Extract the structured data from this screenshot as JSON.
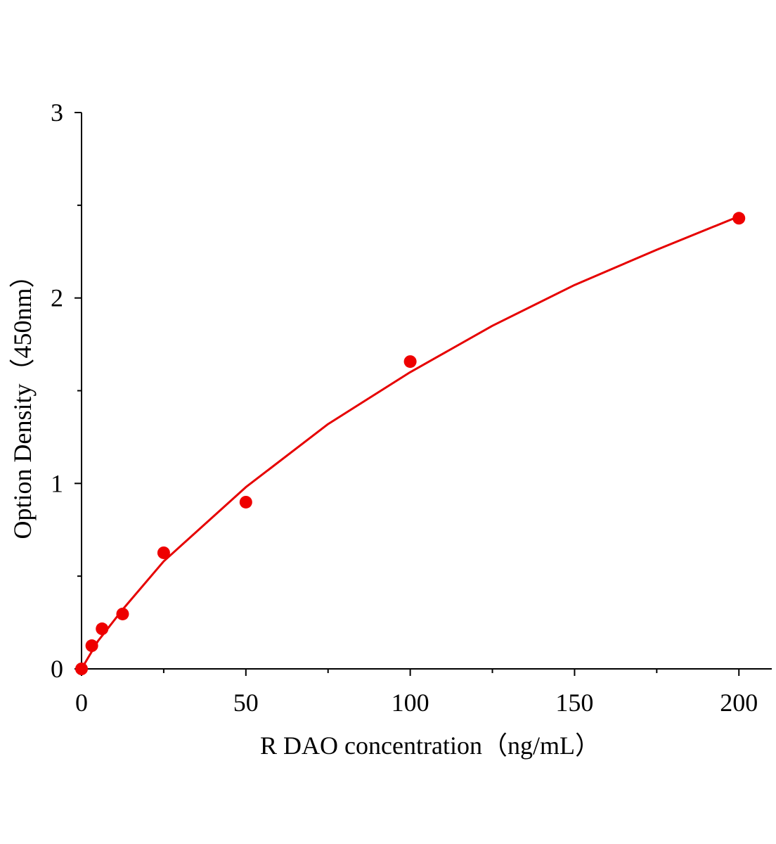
{
  "chart_data": {
    "type": "scatter",
    "xlabel": "R DAO  concentration（ng/mL）",
    "ylabel": "Option Density（450nm）",
    "xlim": [
      0,
      210
    ],
    "ylim": [
      0,
      3
    ],
    "xticks": [
      0,
      50,
      100,
      150,
      200
    ],
    "yticks": [
      0,
      1,
      2,
      3
    ],
    "xminorticks": [
      25,
      75,
      125,
      175
    ],
    "yminorticks": [
      0.5,
      1.5,
      2.5
    ],
    "points": {
      "color": "#ee0000",
      "x": [
        0,
        3.125,
        6.25,
        12.5,
        25,
        50,
        100,
        200
      ],
      "values": [
        0,
        0.125,
        0.216,
        0.296,
        0.626,
        0.899,
        1.657,
        2.43
      ]
    },
    "fit": {
      "color": "#e60000",
      "x": [
        0,
        5,
        12.5,
        25,
        50,
        75,
        100,
        125,
        150,
        175,
        200
      ],
      "values": [
        0,
        0.15,
        0.32,
        0.58,
        0.98,
        1.32,
        1.6,
        1.85,
        2.07,
        2.26,
        2.44
      ]
    }
  }
}
